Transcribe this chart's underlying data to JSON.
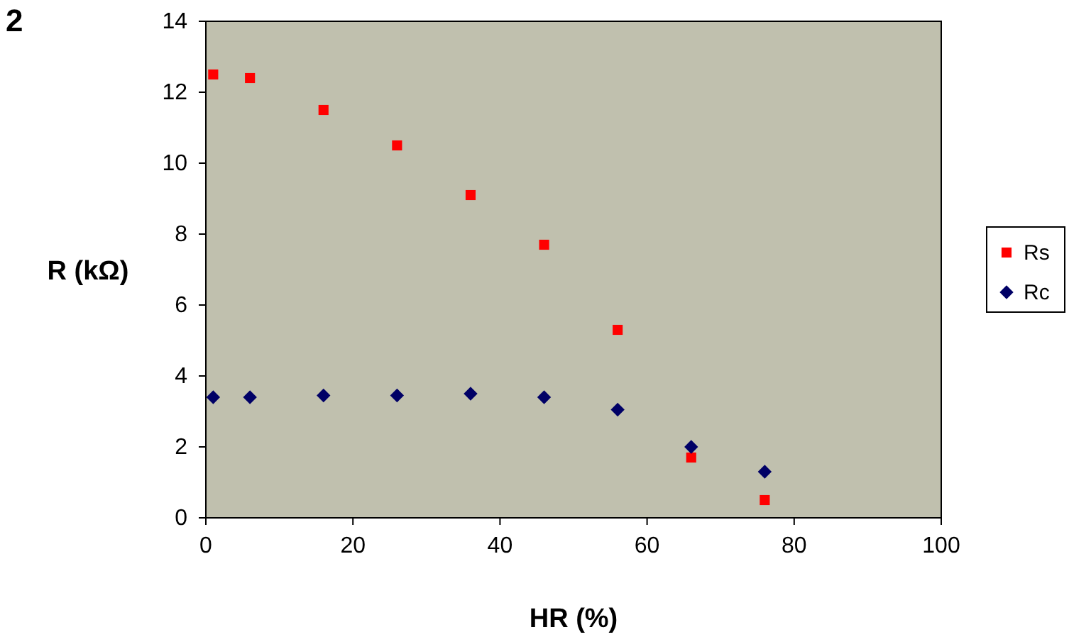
{
  "chart_data": {
    "type": "scatter",
    "xlabel": "HR (%)",
    "ylabel": "R (kΩ)",
    "annotations": [
      "2"
    ],
    "xlim": [
      0,
      100
    ],
    "xticks": [
      0,
      20,
      40,
      60,
      80,
      100
    ],
    "ylim": [
      0,
      14
    ],
    "yticks": [
      0,
      2,
      4,
      6,
      8,
      10,
      12,
      14
    ],
    "grid": false,
    "legend": "right",
    "series": [
      {
        "name": "Rs",
        "color": "#ff0000",
        "marker": "square",
        "x": [
          1,
          6,
          16,
          26,
          36,
          46,
          56,
          66,
          76
        ],
        "values": [
          12.5,
          12.4,
          11.5,
          10.5,
          9.1,
          7.7,
          5.3,
          1.7,
          0.5
        ]
      },
      {
        "name": "Rc",
        "color": "#000066",
        "marker": "diamond",
        "x": [
          1,
          6,
          16,
          26,
          36,
          46,
          56,
          66,
          76
        ],
        "values": [
          3.4,
          3.4,
          3.45,
          3.45,
          3.5,
          3.4,
          3.05,
          2.0,
          1.3
        ]
      }
    ]
  }
}
